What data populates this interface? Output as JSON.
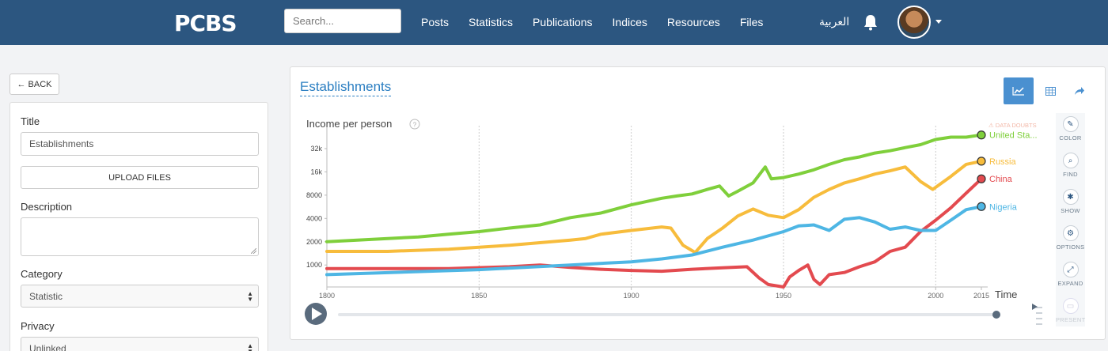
{
  "header": {
    "logo": "PCBS",
    "search_placeholder": "Search...",
    "nav": [
      "Posts",
      "Statistics",
      "Publications",
      "Indices",
      "Resources",
      "Files"
    ],
    "language": "العربية",
    "bell_icon": "bell-icon",
    "avatar_icon": "user-avatar"
  },
  "form": {
    "back_label": "BACK",
    "title_label": "Title",
    "title_value": "Establishments",
    "upload_label": "UPLOAD FILES",
    "description_label": "Description",
    "description_value": "",
    "category_label": "Category",
    "category_value": "Statistic",
    "privacy_label": "Privacy",
    "privacy_value": "Unlinked"
  },
  "chart_panel": {
    "title": "Establishments",
    "tools": [
      "line-chart-icon",
      "table-icon",
      "share-icon"
    ],
    "side_tools": [
      {
        "label": "COLOR",
        "icon": "brush-icon",
        "glyph": "✎"
      },
      {
        "label": "FIND",
        "icon": "search-icon",
        "glyph": "⌕"
      },
      {
        "label": "SHOW",
        "icon": "asterisk-icon",
        "glyph": "✱"
      },
      {
        "label": "OPTIONS",
        "icon": "gear-icon",
        "glyph": "⚙"
      },
      {
        "label": "EXPAND",
        "icon": "expand-icon",
        "glyph": "⤢"
      },
      {
        "label": "PRESENT",
        "icon": "present-icon",
        "glyph": "▭"
      }
    ]
  },
  "chart_data": {
    "type": "line",
    "ylabel": "Income per person",
    "xlabel": "Time",
    "warning": "DATA DOUBTS",
    "scale_y": "log",
    "xlim": [
      1800,
      2015
    ],
    "x_ticks": [
      "1800",
      "1850",
      "1900",
      "1950",
      "2000",
      "2015"
    ],
    "y_ticks": [
      1000,
      2000,
      4000,
      8000,
      16000,
      32000
    ],
    "y_tick_labels": [
      "1000",
      "2000",
      "4000",
      "8000",
      "16k",
      "32k"
    ],
    "grid": true,
    "series": [
      {
        "name": "United Sta...",
        "color": "#7fcf3b",
        "x": [
          1800,
          1810,
          1820,
          1830,
          1840,
          1850,
          1860,
          1870,
          1880,
          1890,
          1900,
          1910,
          1915,
          1920,
          1925,
          1929,
          1932,
          1935,
          1940,
          1944,
          1946,
          1950,
          1955,
          1960,
          1965,
          1970,
          1975,
          1980,
          1985,
          1990,
          1995,
          2000,
          2005,
          2010,
          2015
        ],
        "y": [
          2000,
          2100,
          2200,
          2300,
          2500,
          2700,
          3000,
          3300,
          4100,
          4700,
          6000,
          7300,
          7800,
          8300,
          9500,
          10500,
          7800,
          9000,
          11500,
          18500,
          13000,
          13500,
          15000,
          17000,
          20000,
          23000,
          25000,
          28000,
          30000,
          33000,
          36000,
          42000,
          45000,
          45000,
          48000
        ]
      },
      {
        "name": "Russia",
        "color": "#f7bc3c",
        "x": [
          1800,
          1820,
          1840,
          1860,
          1880,
          1885,
          1890,
          1900,
          1910,
          1913,
          1917,
          1921,
          1925,
          1930,
          1935,
          1940,
          1945,
          1950,
          1955,
          1960,
          1965,
          1970,
          1975,
          1980,
          1985,
          1990,
          1995,
          1999,
          2005,
          2010,
          2015
        ],
        "y": [
          1500,
          1500,
          1600,
          1800,
          2100,
          2200,
          2500,
          2800,
          3100,
          3000,
          1800,
          1450,
          2200,
          3000,
          4300,
          5300,
          4400,
          4100,
          5200,
          7500,
          9500,
          11500,
          13000,
          15000,
          16500,
          18500,
          12000,
          9500,
          14000,
          20000,
          22000
        ]
      },
      {
        "name": "China",
        "color": "#e34a4f",
        "x": [
          1800,
          1820,
          1840,
          1860,
          1870,
          1880,
          1890,
          1900,
          1910,
          1920,
          1930,
          1938,
          1942,
          1945,
          1950,
          1952,
          1955,
          1958,
          1960,
          1962,
          1965,
          1970,
          1975,
          1980,
          1985,
          1990,
          1995,
          2000,
          2005,
          2010,
          2015
        ],
        "y": [
          900,
          900,
          900,
          950,
          1000,
          930,
          880,
          850,
          830,
          880,
          920,
          950,
          680,
          560,
          520,
          700,
          850,
          1000,
          650,
          560,
          750,
          800,
          950,
          1100,
          1500,
          1700,
          2700,
          3800,
          5500,
          8500,
          13000
        ]
      },
      {
        "name": "Nigeria",
        "color": "#4eb6e4",
        "x": [
          1800,
          1850,
          1880,
          1900,
          1910,
          1920,
          1930,
          1940,
          1950,
          1955,
          1960,
          1965,
          1970,
          1975,
          1980,
          1985,
          1990,
          1995,
          2000,
          2005,
          2010,
          2015
        ],
        "y": [
          750,
          870,
          1000,
          1100,
          1200,
          1350,
          1700,
          2100,
          2700,
          3200,
          3300,
          2800,
          3900,
          4100,
          3600,
          2900,
          3100,
          2800,
          2800,
          3800,
          5200,
          5700
        ]
      }
    ]
  }
}
